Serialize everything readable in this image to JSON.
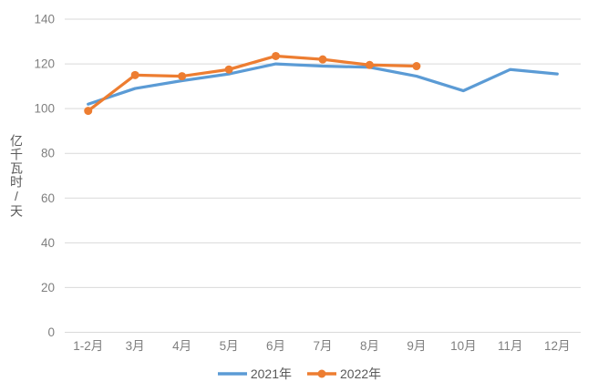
{
  "chart_data": {
    "type": "line",
    "title": "",
    "categories": [
      "1-2月",
      "3月",
      "4月",
      "5月",
      "6月",
      "7月",
      "8月",
      "9月",
      "10月",
      "11月",
      "12月"
    ],
    "series": [
      {
        "name": "2021年",
        "color": "#5B9BD5",
        "marker": "none",
        "values": [
          102,
          109,
          112.5,
          115.5,
          120,
          119,
          118.5,
          114.5,
          108,
          117.5,
          115.5
        ]
      },
      {
        "name": "2022年",
        "color": "#ED7D31",
        "marker": "circle",
        "values": [
          99,
          115,
          114.5,
          117.5,
          123.5,
          122,
          119.5,
          119
        ]
      }
    ],
    "xlabel": "",
    "ylabel": "亿千瓦时/天",
    "ylim": [
      0,
      140
    ],
    "yticks": [
      0,
      20,
      40,
      60,
      80,
      100,
      120,
      140
    ],
    "grid": true,
    "legend_position": "bottom",
    "colors": {
      "gridline": "#D9D9D9",
      "tick_label": "#7F7F7F",
      "axis_title": "#595959",
      "legend_text": "#595959",
      "background": "#FFFFFF"
    }
  }
}
